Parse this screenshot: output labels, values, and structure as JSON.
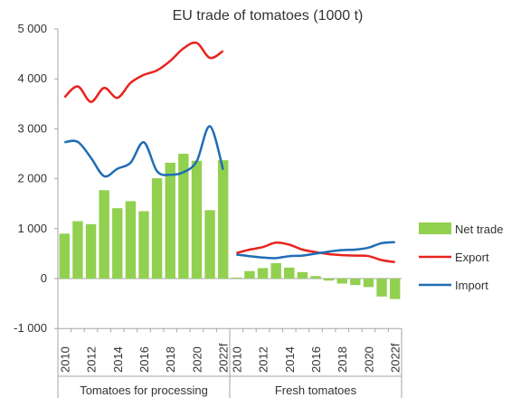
{
  "chart_data": {
    "type": "bar",
    "title": "EU trade of tomatoes (1000 t)",
    "ylim": [
      -1000,
      5000
    ],
    "yticks": [
      {
        "value": 5000,
        "label": "5 000"
      },
      {
        "value": 4000,
        "label": "4 000"
      },
      {
        "value": 3000,
        "label": "3 000"
      },
      {
        "value": 2000,
        "label": "2 000"
      },
      {
        "value": 1000,
        "label": "1 000"
      },
      {
        "value": 0,
        "label": "0"
      },
      {
        "value": -1000,
        "label": "-1 000"
      }
    ],
    "x_labels": [
      "2010",
      "2012",
      "2014",
      "2016",
      "2018",
      "2020",
      "2022f"
    ],
    "legend_position": "right",
    "groups": [
      {
        "name": "Tomatoes for processing",
        "categories": [
          "2010",
          "2011",
          "2012",
          "2013",
          "2014",
          "2015",
          "2016",
          "2017",
          "2018",
          "2019",
          "2020",
          "2021",
          "2022f"
        ],
        "series": [
          {
            "name": "Net trade",
            "type": "bar",
            "values": [
              900,
              1150,
              1090,
              1770,
              1410,
              1550,
              1350,
              2010,
              2320,
              2500,
              2360,
              1370,
              2370
            ]
          },
          {
            "name": "Export",
            "type": "line",
            "values": [
              3630,
              3850,
              3540,
              3820,
              3620,
              3920,
              4080,
              4170,
              4360,
              4610,
              4720,
              4420,
              4560
            ]
          },
          {
            "name": "Import",
            "type": "line",
            "values": [
              2730,
              2740,
              2420,
              2050,
              2200,
              2320,
              2730,
              2150,
              2080,
              2130,
              2350,
              3050,
              2180
            ]
          }
        ]
      },
      {
        "name": "Fresh tomatoes",
        "categories": [
          "2010",
          "2011",
          "2012",
          "2013",
          "2014",
          "2015",
          "2016",
          "2017",
          "2018",
          "2019",
          "2020",
          "2021",
          "2022f"
        ],
        "series": [
          {
            "name": "Net trade",
            "type": "bar",
            "values": [
              20,
              150,
              210,
              310,
              220,
              130,
              50,
              -40,
              -100,
              -130,
              -170,
              -360,
              -410
            ]
          },
          {
            "name": "Export",
            "type": "line",
            "values": [
              510,
              580,
              630,
              720,
              680,
              580,
              530,
              490,
              470,
              460,
              450,
              370,
              330
            ]
          },
          {
            "name": "Import",
            "type": "line",
            "values": [
              480,
              450,
              420,
              410,
              450,
              460,
              500,
              540,
              570,
              580,
              620,
              710,
              730
            ]
          }
        ]
      }
    ],
    "colors": {
      "Net trade": "#92d050",
      "Export": "#e8231e",
      "Import": "#1f6db5",
      "axis": "#a6a6a6"
    }
  }
}
